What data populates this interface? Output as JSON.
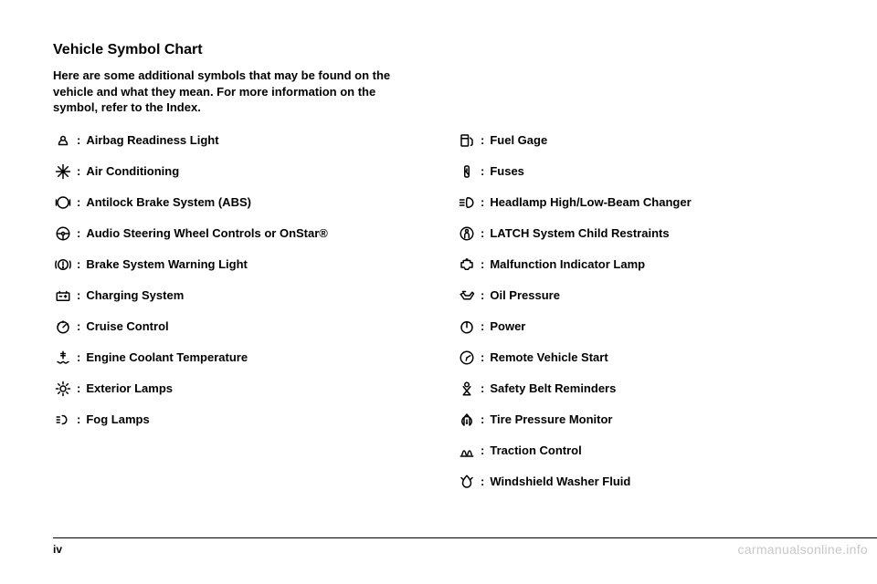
{
  "title": "Vehicle Symbol Chart",
  "intro": "Here are some additional symbols that may be found on the vehicle and what they mean. For more information on the symbol, refer to the Index.",
  "left": [
    {
      "sym": "airbag",
      "label": "Airbag Readiness Light"
    },
    {
      "sym": "snowflake",
      "label": "Air Conditioning"
    },
    {
      "sym": "abs",
      "label": "Antilock Brake System (ABS)"
    },
    {
      "sym": "steering",
      "label": "Audio Steering Wheel Controls or OnStar®"
    },
    {
      "sym": "brakecircle",
      "label": "Brake System Warning Light"
    },
    {
      "sym": "battery",
      "label": "Charging System"
    },
    {
      "sym": "cruise",
      "label": "Cruise Control"
    },
    {
      "sym": "coolant",
      "label": "Engine Coolant Temperature"
    },
    {
      "sym": "lampsun",
      "label": "Exterior Lamps"
    },
    {
      "sym": "fog",
      "label": "Fog Lamps"
    }
  ],
  "right": [
    {
      "sym": "fuel",
      "label": "Fuel Gage"
    },
    {
      "sym": "fuses",
      "label": "Fuses"
    },
    {
      "sym": "headlamp",
      "label": "Headlamp High/Low-Beam Changer"
    },
    {
      "sym": "latch",
      "label": "LATCH System Child Restraints"
    },
    {
      "sym": "mil",
      "label": "Malfunction Indicator Lamp"
    },
    {
      "sym": "oil",
      "label": "Oil Pressure"
    },
    {
      "sym": "power",
      "label": "Power"
    },
    {
      "sym": "remote",
      "label": "Remote Vehicle Start"
    },
    {
      "sym": "belt",
      "label": "Safety Belt Reminders"
    },
    {
      "sym": "tire",
      "label": "Tire Pressure Monitor"
    },
    {
      "sym": "traction",
      "label": "Traction Control"
    },
    {
      "sym": "washer",
      "label": "Windshield Washer Fluid"
    }
  ],
  "page_num": "iv",
  "watermark": "carmanualsonline.info",
  "symbol_stroke": "#000000"
}
